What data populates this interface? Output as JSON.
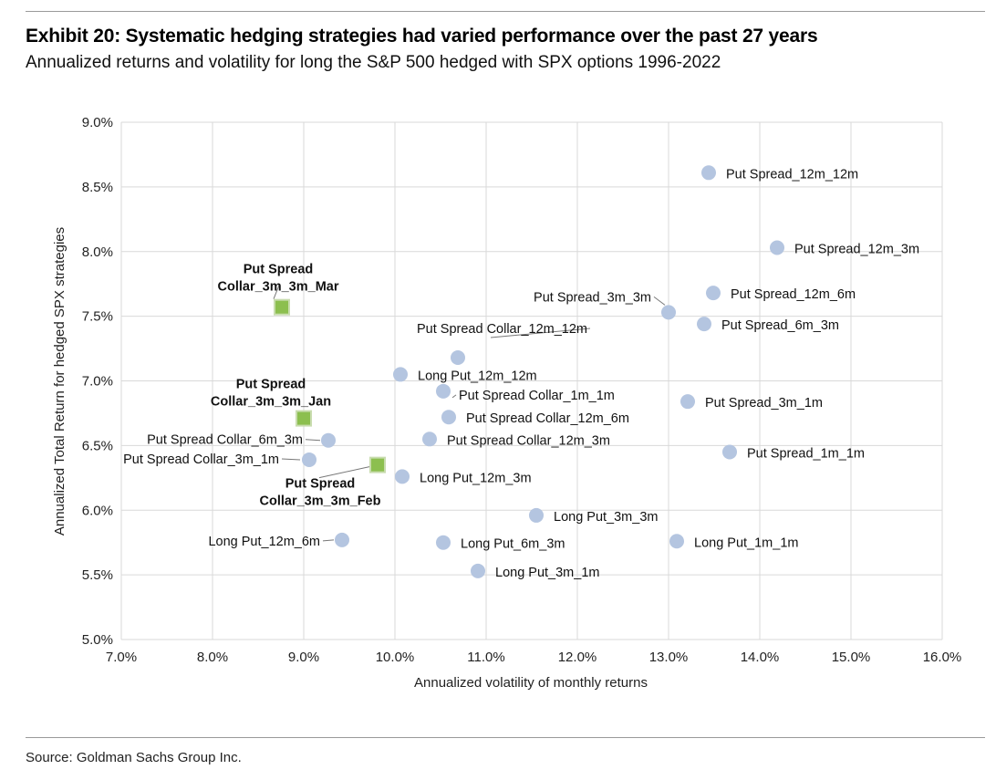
{
  "header": {
    "title": "Exhibit 20: Systematic hedging strategies had varied performance over the past 27 years",
    "subtitle": "Annualized returns and volatility for long the S&P 500 hedged with SPX options 1996-2022"
  },
  "footer": {
    "source": "Source: Goldman Sachs Group Inc."
  },
  "colors": {
    "circle": "#b4c5e0",
    "square": "#8cbf4f",
    "square_border": "#c8dcae",
    "grid": "#d9d9d9"
  },
  "chart_data": {
    "type": "scatter",
    "title": "",
    "xlabel": "Annualized volatility of monthly returns",
    "ylabel": "Annualized Total Return for hedged SPX strategies",
    "xlim": [
      7.0,
      16.0
    ],
    "ylim": [
      5.0,
      9.0
    ],
    "x_ticks": [
      "7.0%",
      "8.0%",
      "9.0%",
      "10.0%",
      "11.0%",
      "12.0%",
      "13.0%",
      "14.0%",
      "15.0%",
      "16.0%"
    ],
    "y_ticks": [
      "5.0%",
      "5.5%",
      "6.0%",
      "6.5%",
      "7.0%",
      "7.5%",
      "8.0%",
      "8.5%",
      "9.0%"
    ],
    "grid": true,
    "points": [
      {
        "label": "Put Spread_12m_12m",
        "x": 13.44,
        "y": 8.61,
        "shape": "circle"
      },
      {
        "label": "Put Spread_12m_3m",
        "x": 14.19,
        "y": 8.03,
        "shape": "circle"
      },
      {
        "label": "Put Spread_12m_6m",
        "x": 13.49,
        "y": 7.68,
        "shape": "circle"
      },
      {
        "label": "Put Spread_3m_3m",
        "x": 13.0,
        "y": 7.53,
        "shape": "circle"
      },
      {
        "label": "Put Spread_6m_3m",
        "x": 13.39,
        "y": 7.44,
        "shape": "circle"
      },
      {
        "label": "Put Spread Collar_12m_12m",
        "x": 10.69,
        "y": 7.18,
        "shape": "circle"
      },
      {
        "label": "Long Put_12m_12m",
        "x": 10.06,
        "y": 7.05,
        "shape": "circle"
      },
      {
        "label": "Put Spread Collar_1m_1m",
        "x": 10.53,
        "y": 6.92,
        "shape": "circle"
      },
      {
        "label": "Put Spread_3m_1m",
        "x": 13.21,
        "y": 6.84,
        "shape": "circle"
      },
      {
        "label": "Put Spread Collar_12m_6m",
        "x": 10.59,
        "y": 6.72,
        "shape": "circle"
      },
      {
        "label": "Put Spread Collar_12m_3m",
        "x": 10.38,
        "y": 6.55,
        "shape": "circle"
      },
      {
        "label": "Put Spread Collar_6m_3m",
        "x": 9.27,
        "y": 6.54,
        "shape": "circle"
      },
      {
        "label": "Put Spread_1m_1m",
        "x": 13.67,
        "y": 6.45,
        "shape": "circle"
      },
      {
        "label": "Put Spread Collar_3m_1m",
        "x": 9.06,
        "y": 6.39,
        "shape": "circle"
      },
      {
        "label": "Long Put_12m_3m",
        "x": 10.08,
        "y": 6.26,
        "shape": "circle"
      },
      {
        "label": "Long Put_3m_3m",
        "x": 11.55,
        "y": 5.96,
        "shape": "circle"
      },
      {
        "label": "Long Put_12m_6m",
        "x": 9.42,
        "y": 5.77,
        "shape": "circle"
      },
      {
        "label": "Long Put_6m_3m",
        "x": 10.53,
        "y": 5.75,
        "shape": "circle"
      },
      {
        "label": "Long Put_1m_1m",
        "x": 13.09,
        "y": 5.76,
        "shape": "circle"
      },
      {
        "label": "Long Put_3m_1m",
        "x": 10.91,
        "y": 5.53,
        "shape": "circle"
      },
      {
        "label": "Put Spread Collar_3m_3m_Mar",
        "x": 8.76,
        "y": 7.57,
        "shape": "square",
        "display": [
          "Put Spread",
          "Collar_3m_3m_Mar"
        ]
      },
      {
        "label": "Put Spread Collar_3m_3m_Jan",
        "x": 9.0,
        "y": 6.71,
        "shape": "square",
        "display": [
          "Put Spread",
          "Collar_3m_3m_Jan"
        ]
      },
      {
        "label": "Put Spread Collar_3m_3m_Feb",
        "x": 9.81,
        "y": 6.35,
        "shape": "square",
        "display": [
          "Put Spread",
          "Collar_3m_3m_Feb"
        ]
      }
    ]
  }
}
